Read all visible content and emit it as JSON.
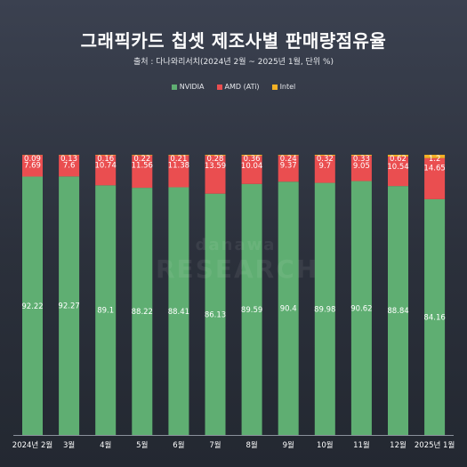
{
  "chart_data": {
    "type": "bar",
    "stacked": true,
    "title": "그래픽카드 칩셋 제조사별 판매량점유율",
    "subtitle": "출처 : 다나와리서치(2024년 2월 ~ 2025년 1월, 단위 %)",
    "categories": [
      "2024년 2월",
      "3월",
      "4월",
      "5월",
      "6월",
      "7월",
      "8월",
      "9월",
      "10월",
      "11월",
      "12월",
      "2025년 1월"
    ],
    "series": [
      {
        "name": "NVIDIA",
        "color": "#5fae72",
        "values": [
          92.22,
          92.27,
          89.1,
          88.22,
          88.41,
          86.13,
          89.59,
          90.4,
          89.98,
          90.62,
          88.84,
          84.16
        ]
      },
      {
        "name": "AMD (ATi)",
        "color": "#ea4e50",
        "values": [
          7.69,
          7.6,
          10.74,
          11.56,
          11.38,
          13.59,
          10.04,
          9.37,
          9.7,
          9.05,
          10.54,
          14.65
        ]
      },
      {
        "name": "Intel",
        "color": "#f3b125",
        "values": [
          0.09,
          0.13,
          0.16,
          0.22,
          0.21,
          0.28,
          0.36,
          0.24,
          0.32,
          0.33,
          0.62,
          1.2
        ]
      }
    ],
    "ylim": [
      0,
      100
    ],
    "legend_position": "top-center",
    "grid": false,
    "watermark_text": [
      "danawa",
      "RESEARCH"
    ]
  }
}
